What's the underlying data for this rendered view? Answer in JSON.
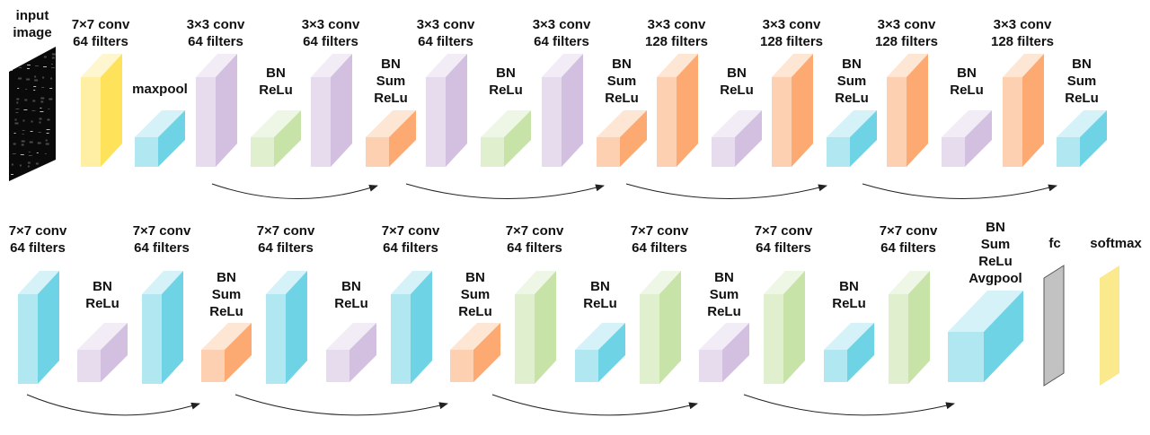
{
  "colors": {
    "yellow": "#fde25a",
    "cyan": "#6fd3e6",
    "purple": "#d3bfe0",
    "green": "#c7e3a8",
    "orange": "#fcaa72",
    "gray": "#c2c2c2",
    "softyellow": "#fbe98e",
    "arrow": "#222222"
  },
  "input_image": {
    "label": [
      "input",
      "image"
    ]
  },
  "row1": [
    {
      "kind": "tall",
      "color": "yellow",
      "label": [
        "7×7 conv",
        "64 filters"
      ]
    },
    {
      "kind": "small",
      "color": "cyan",
      "label": [
        "maxpool"
      ]
    },
    {
      "kind": "tall",
      "color": "purple",
      "label": [
        "3×3 conv",
        "64 filters"
      ]
    },
    {
      "kind": "small",
      "color": "green",
      "label": [
        "BN",
        "ReLu"
      ]
    },
    {
      "kind": "tall",
      "color": "purple",
      "label": [
        "3×3 conv",
        "64 filters"
      ]
    },
    {
      "kind": "small",
      "color": "orange",
      "label": [
        "BN",
        "Sum",
        "ReLu"
      ]
    },
    {
      "kind": "tall",
      "color": "purple",
      "label": [
        "3×3 conv",
        "64 filters"
      ]
    },
    {
      "kind": "small",
      "color": "green",
      "label": [
        "BN",
        "ReLu"
      ]
    },
    {
      "kind": "tall",
      "color": "purple",
      "label": [
        "3×3 conv",
        "64 filters"
      ]
    },
    {
      "kind": "small",
      "color": "orange",
      "label": [
        "BN",
        "Sum",
        "ReLu"
      ]
    },
    {
      "kind": "tall",
      "color": "orange",
      "label": [
        "3×3 conv",
        "128 filters"
      ]
    },
    {
      "kind": "small",
      "color": "purple",
      "label": [
        "BN",
        "ReLu"
      ]
    },
    {
      "kind": "tall",
      "color": "orange",
      "label": [
        "3×3 conv",
        "128 filters"
      ]
    },
    {
      "kind": "small",
      "color": "cyan",
      "label": [
        "BN",
        "Sum",
        "ReLu"
      ]
    },
    {
      "kind": "tall",
      "color": "orange",
      "label": [
        "3×3 conv",
        "128 filters"
      ]
    },
    {
      "kind": "small",
      "color": "purple",
      "label": [
        "BN",
        "ReLu"
      ]
    },
    {
      "kind": "tall",
      "color": "orange",
      "label": [
        "3×3 conv",
        "128 filters"
      ]
    },
    {
      "kind": "small",
      "color": "cyan",
      "label": [
        "BN",
        "Sum",
        "ReLu"
      ]
    }
  ],
  "row2": [
    {
      "kind": "tall",
      "color": "cyan",
      "label": [
        "7×7 conv",
        "64 filters"
      ]
    },
    {
      "kind": "small",
      "color": "purple",
      "label": [
        "BN",
        "ReLu"
      ]
    },
    {
      "kind": "tall",
      "color": "cyan",
      "label": [
        "7×7 conv",
        "64 filters"
      ]
    },
    {
      "kind": "small",
      "color": "orange",
      "label": [
        "BN",
        "Sum",
        "ReLu"
      ]
    },
    {
      "kind": "tall",
      "color": "cyan",
      "label": [
        "7×7 conv",
        "64 filters"
      ]
    },
    {
      "kind": "small",
      "color": "purple",
      "label": [
        "BN",
        "ReLu"
      ]
    },
    {
      "kind": "tall",
      "color": "cyan",
      "label": [
        "7×7 conv",
        "64 filters"
      ]
    },
    {
      "kind": "small",
      "color": "orange",
      "label": [
        "BN",
        "Sum",
        "ReLu"
      ]
    },
    {
      "kind": "tall",
      "color": "green",
      "label": [
        "7×7 conv",
        "64 filters"
      ]
    },
    {
      "kind": "small",
      "color": "cyan",
      "label": [
        "BN",
        "ReLu"
      ]
    },
    {
      "kind": "tall",
      "color": "green",
      "label": [
        "7×7 conv",
        "64 filters"
      ]
    },
    {
      "kind": "small",
      "color": "purple",
      "label": [
        "BN",
        "Sum",
        "ReLu"
      ]
    },
    {
      "kind": "tall",
      "color": "green",
      "label": [
        "7×7 conv",
        "64 filters"
      ]
    },
    {
      "kind": "small",
      "color": "cyan",
      "label": [
        "BN",
        "ReLu"
      ]
    },
    {
      "kind": "tall",
      "color": "green",
      "label": [
        "7×7 conv",
        "64 filters"
      ]
    },
    {
      "kind": "big",
      "color": "cyan",
      "label": [
        "BN",
        "Sum",
        "ReLu",
        "Avgpool"
      ]
    },
    {
      "kind": "slab",
      "color": "gray",
      "label": [
        "fc"
      ]
    },
    {
      "kind": "slab",
      "color": "softyellow",
      "label": [
        "softmax"
      ]
    }
  ]
}
